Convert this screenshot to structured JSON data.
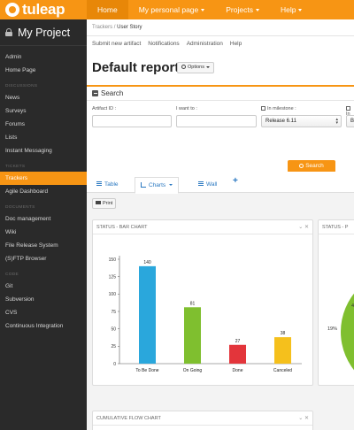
{
  "topbar": {
    "logo_text": "tuleap",
    "nav": [
      {
        "label": "Home"
      },
      {
        "label": "My personal page"
      },
      {
        "label": "Projects"
      },
      {
        "label": "Help"
      }
    ]
  },
  "sidebar": {
    "project_name": "My Project",
    "items_top": [
      "Admin",
      "Home Page"
    ],
    "discussions_heading": "DISCUSSIONS",
    "discussions": [
      "News",
      "Surveys",
      "Forums",
      "Lists",
      "Instant Messaging"
    ],
    "tickets_heading": "TICKETS",
    "tickets": [
      "Trackers",
      "Agile Dashboard"
    ],
    "documents_heading": "DOCUMENTS",
    "documents": [
      "Doc management",
      "Wiki",
      "File Release System",
      "(S)FTP Browser"
    ],
    "code_heading": "CODE",
    "code": [
      "Git",
      "Subversion",
      "CVS",
      "Continuous Integration"
    ]
  },
  "breadcrumb": {
    "parent": "Trackers",
    "sep": " / ",
    "current": "User Story"
  },
  "subnav": [
    "Submit new artifact",
    "Notifications",
    "Administration",
    "Help"
  ],
  "report": {
    "title": "Default report",
    "options_label": "Options"
  },
  "search": {
    "heading": "Search",
    "artifact_id_label": "Artifact ID :",
    "i_want_label": "I want to :",
    "milestone_label": "In milestone :",
    "milestone_value": "Release 6.11",
    "fourth_label": "In",
    "fourth_value": "B",
    "button_label": "Search"
  },
  "tabs": {
    "table": "Table",
    "charts": "Charts",
    "wall": "Wall",
    "add": "+"
  },
  "print_label": "Print",
  "cards": {
    "bar_title": "STATUS - BAR CHART",
    "pie_title": "STATUS - P",
    "cfd_title": "CUMULATIVE FLOW CHART",
    "ctrl_collapse": "⌄",
    "ctrl_close": "✕"
  },
  "pie_visible": {
    "left_pct": "19%",
    "right_pct": "4"
  },
  "colors": {
    "accent": "#f79514",
    "sidebar": "#2a2a2a",
    "link": "#2a78c1"
  },
  "chart_data": {
    "type": "bar",
    "title": "STATUS - BAR CHART",
    "categories": [
      "To Be Done",
      "On Going",
      "Done",
      "Canceled"
    ],
    "values": [
      140,
      81,
      27,
      38
    ],
    "colors": [
      "#2aa7dc",
      "#7fbf2f",
      "#e3353b",
      "#f5c01c"
    ],
    "yticks": [
      0,
      25,
      50,
      75,
      100,
      125,
      150
    ],
    "ylim": [
      0,
      150
    ]
  }
}
